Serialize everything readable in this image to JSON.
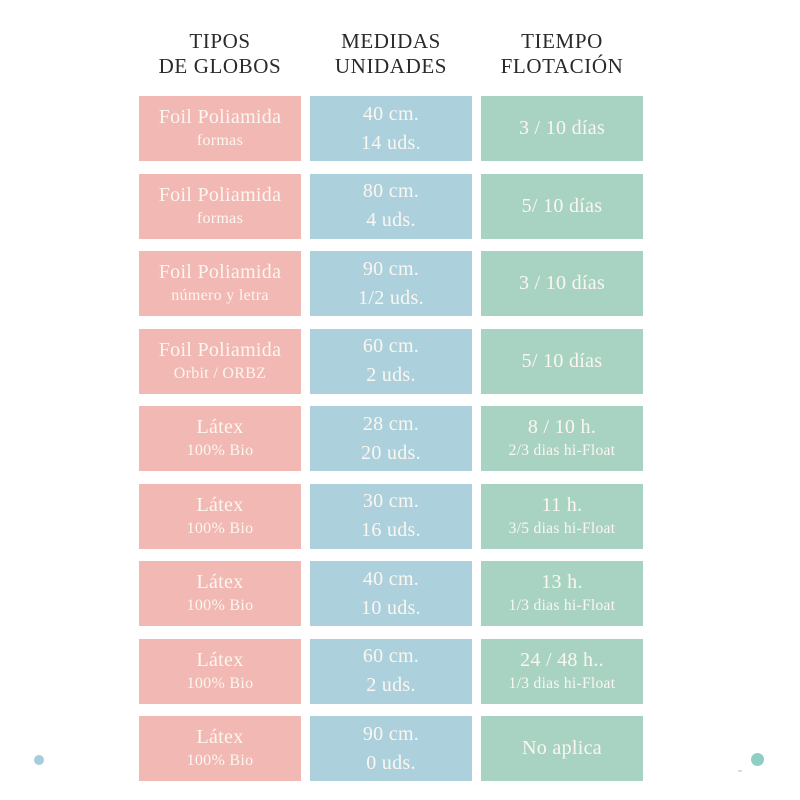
{
  "headers": [
    {
      "line1": "TIPOS",
      "line2": "DE GLOBOS"
    },
    {
      "line1": "MEDIDAS",
      "line2": "UNIDADES"
    },
    {
      "line1": "TIEMPO",
      "line2": "FLOTACIÓN"
    }
  ],
  "rows": [
    {
      "tipo": [
        "Foil Poliamida",
        "formas"
      ],
      "medida": [
        "40 cm.",
        "14 uds."
      ],
      "tiempo": [
        "3 / 10 días",
        ""
      ]
    },
    {
      "tipo": [
        "Foil Poliamida",
        "formas"
      ],
      "medida": [
        "80 cm.",
        "4 uds."
      ],
      "tiempo": [
        "5/ 10 días",
        ""
      ]
    },
    {
      "tipo": [
        "Foil Poliamida",
        "número y letra"
      ],
      "medida": [
        "90 cm.",
        "1/2 uds."
      ],
      "tiempo": [
        "3 / 10 días",
        ""
      ]
    },
    {
      "tipo": [
        "Foil Poliamida",
        "Orbit / ORBZ"
      ],
      "medida": [
        "60 cm.",
        "2 uds."
      ],
      "tiempo": [
        "5/ 10 días",
        ""
      ]
    },
    {
      "tipo": [
        "Látex",
        "100% Bio"
      ],
      "medida": [
        "28 cm.",
        "20 uds."
      ],
      "tiempo": [
        "8 / 10 h.",
        "2/3 dias hi-Float"
      ]
    },
    {
      "tipo": [
        "Látex",
        "100% Bio"
      ],
      "medida": [
        "30 cm.",
        "16 uds."
      ],
      "tiempo": [
        "11 h.",
        "3/5 dias hi-Float"
      ]
    },
    {
      "tipo": [
        "Látex",
        "100% Bio"
      ],
      "medida": [
        "40 cm.",
        "10 uds."
      ],
      "tiempo": [
        "13 h.",
        "1/3 dias hi-Float"
      ]
    },
    {
      "tipo": [
        "Látex",
        "100% Bio"
      ],
      "medida": [
        "60 cm.",
        "2 uds."
      ],
      "tiempo": [
        "24 / 48 h..",
        "1/3 dias hi-Float"
      ]
    },
    {
      "tipo": [
        "Látex",
        "100% Bio"
      ],
      "medida": [
        "90 cm.",
        "0 uds."
      ],
      "tiempo": [
        "No aplica",
        ""
      ]
    }
  ],
  "colors": {
    "pink_cell": "#f2b8b3",
    "blue_cell": "#acd1dd",
    "green_cell": "#a8d3c2",
    "cell_text": "#fcf6f0",
    "header_text": "#2b2a28",
    "dot_left_blue": "#a5cddc",
    "dot_right_teal": "#8fcec4"
  },
  "chart_data": {
    "type": "table",
    "columns": [
      "TIPOS DE GLOBOS",
      "MEDIDAS UNIDADES",
      "TIEMPO FLOTACIÓN"
    ],
    "rows": [
      [
        "Foil Poliamida formas",
        "40 cm. 14 uds.",
        "3 / 10 días"
      ],
      [
        "Foil Poliamida formas",
        "80 cm. 4 uds.",
        "5/ 10 días"
      ],
      [
        "Foil Poliamida número y letra",
        "90 cm. 1/2 uds.",
        "3 / 10 días"
      ],
      [
        "Foil Poliamida Orbit / ORBZ",
        "60 cm. 2 uds.",
        "5/ 10 días"
      ],
      [
        "Látex 100% Bio",
        "28 cm. 20 uds.",
        "8 / 10 h. 2/3 dias hi-Float"
      ],
      [
        "Látex 100% Bio",
        "30 cm. 16 uds.",
        "11 h. 3/5 dias hi-Float"
      ],
      [
        "Látex 100% Bio",
        "40 cm. 10 uds.",
        "13 h. 1/3 dias hi-Float"
      ],
      [
        "Látex 100% Bio",
        "60 cm. 2 uds.",
        "24 / 48 h.. 1/3 dias hi-Float"
      ],
      [
        "Látex 100% Bio",
        "90 cm. 0 uds.",
        "No aplica"
      ]
    ],
    "legend_position": "none",
    "grid": false
  }
}
